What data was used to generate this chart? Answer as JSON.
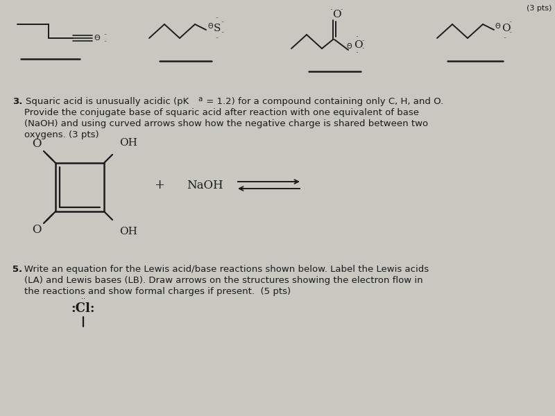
{
  "bg_color": "#c8c8c0",
  "text_color": "#1a1a1a",
  "font_size_body": 9.5,
  "font_size_small": 8,
  "q3_lines": [
    "3. Squaric acid is unusually acidic (pKa = 1.2) for a compound containing only C, H, and O.",
    "    Provide the conjugate base of squaric acid after reaction with one equivalent of base",
    "    (NaOH) and using curved arrows show how the negative charge is shared between two",
    "    oxygens. (3 pts)"
  ],
  "q5_lines": [
    "5. Write an equation for the Lewis acid/base reactions shown below. Label the Lewis acids",
    "    (LA) and Lewis bases (LB). Draw arrows on the structures showing the electron flow in",
    "    the reactions and show formal charges if present.  (5 pts)"
  ]
}
